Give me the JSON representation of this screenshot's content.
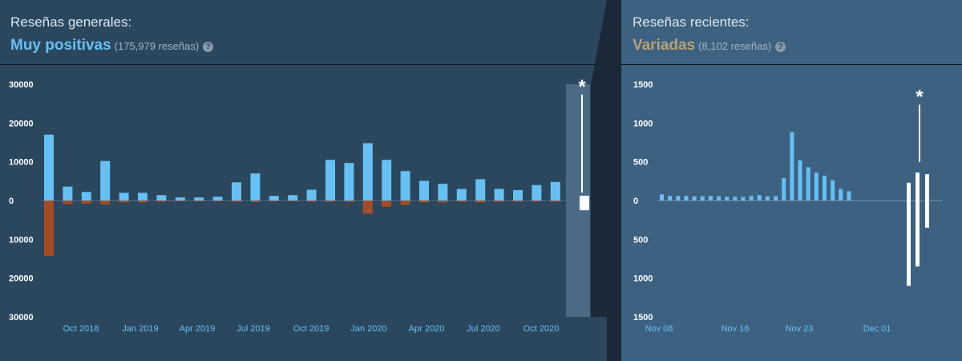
{
  "overall": {
    "title": "Reseñas generales:",
    "summary": "Muy positivas",
    "count": "(175,979 reseñas)",
    "help": "?",
    "summary_color": "#66c0f4"
  },
  "recent": {
    "title": "Reseñas recientes:",
    "summary": "Variadas",
    "count": "(8,102 reseñas)",
    "help": "?",
    "summary_color": "#b9a074"
  },
  "colors": {
    "positive": "#66c0f4",
    "negative": "#a34c25",
    "recent_bar": "#ffffff"
  },
  "chart_data": [
    {
      "type": "bar",
      "y_tick_labels": [
        "30000",
        "20000",
        "10000",
        "0",
        "10000",
        "20000",
        "30000"
      ],
      "ylim": [
        -30000,
        30000
      ],
      "x_tick_labels": [
        "Oct 2018",
        "Jan 2019",
        "Apr 2019",
        "Jul 2019",
        "Oct 2019",
        "Jan 2020",
        "Apr 2020",
        "Jul 2020",
        "Oct 2020"
      ],
      "positive": [
        17000,
        3600,
        2200,
        10200,
        2000,
        2000,
        1400,
        800,
        800,
        1000,
        4700,
        7000,
        1200,
        1400,
        2800,
        10500,
        9700,
        14800,
        10500,
        7600,
        5100,
        4300,
        3000,
        5500,
        3000,
        2700,
        4000,
        4800
      ],
      "negative": [
        -14300,
        -900,
        -800,
        -1000,
        -500,
        -500,
        -300,
        -200,
        -200,
        -200,
        -300,
        -400,
        -200,
        -200,
        -300,
        -300,
        -400,
        -3400,
        -1600,
        -1100,
        -500,
        -500,
        -300,
        -500,
        -300,
        -300,
        -300,
        -300
      ],
      "recent_marker": "*",
      "recent_value_positive": 29000,
      "recent_value_negative": -2500
    },
    {
      "type": "bar",
      "y_tick_labels": [
        "1500",
        "1000",
        "500",
        "0",
        "500",
        "1000",
        "1500"
      ],
      "ylim": [
        -1500,
        1500
      ],
      "x_tick_labels": [
        "Nov 08",
        "Nov 16",
        "Nov 23",
        "Dec 01"
      ],
      "positive": [
        80,
        60,
        60,
        60,
        55,
        55,
        60,
        55,
        50,
        50,
        45,
        60,
        70,
        55,
        55,
        290,
        880,
        520,
        430,
        360,
        320,
        260,
        150,
        120
      ],
      "marker": "*",
      "recent_positive": [
        230,
        360,
        340
      ],
      "recent_negative": [
        -1100,
        -850,
        -350
      ],
      "recent_marker_value": 1360
    }
  ]
}
